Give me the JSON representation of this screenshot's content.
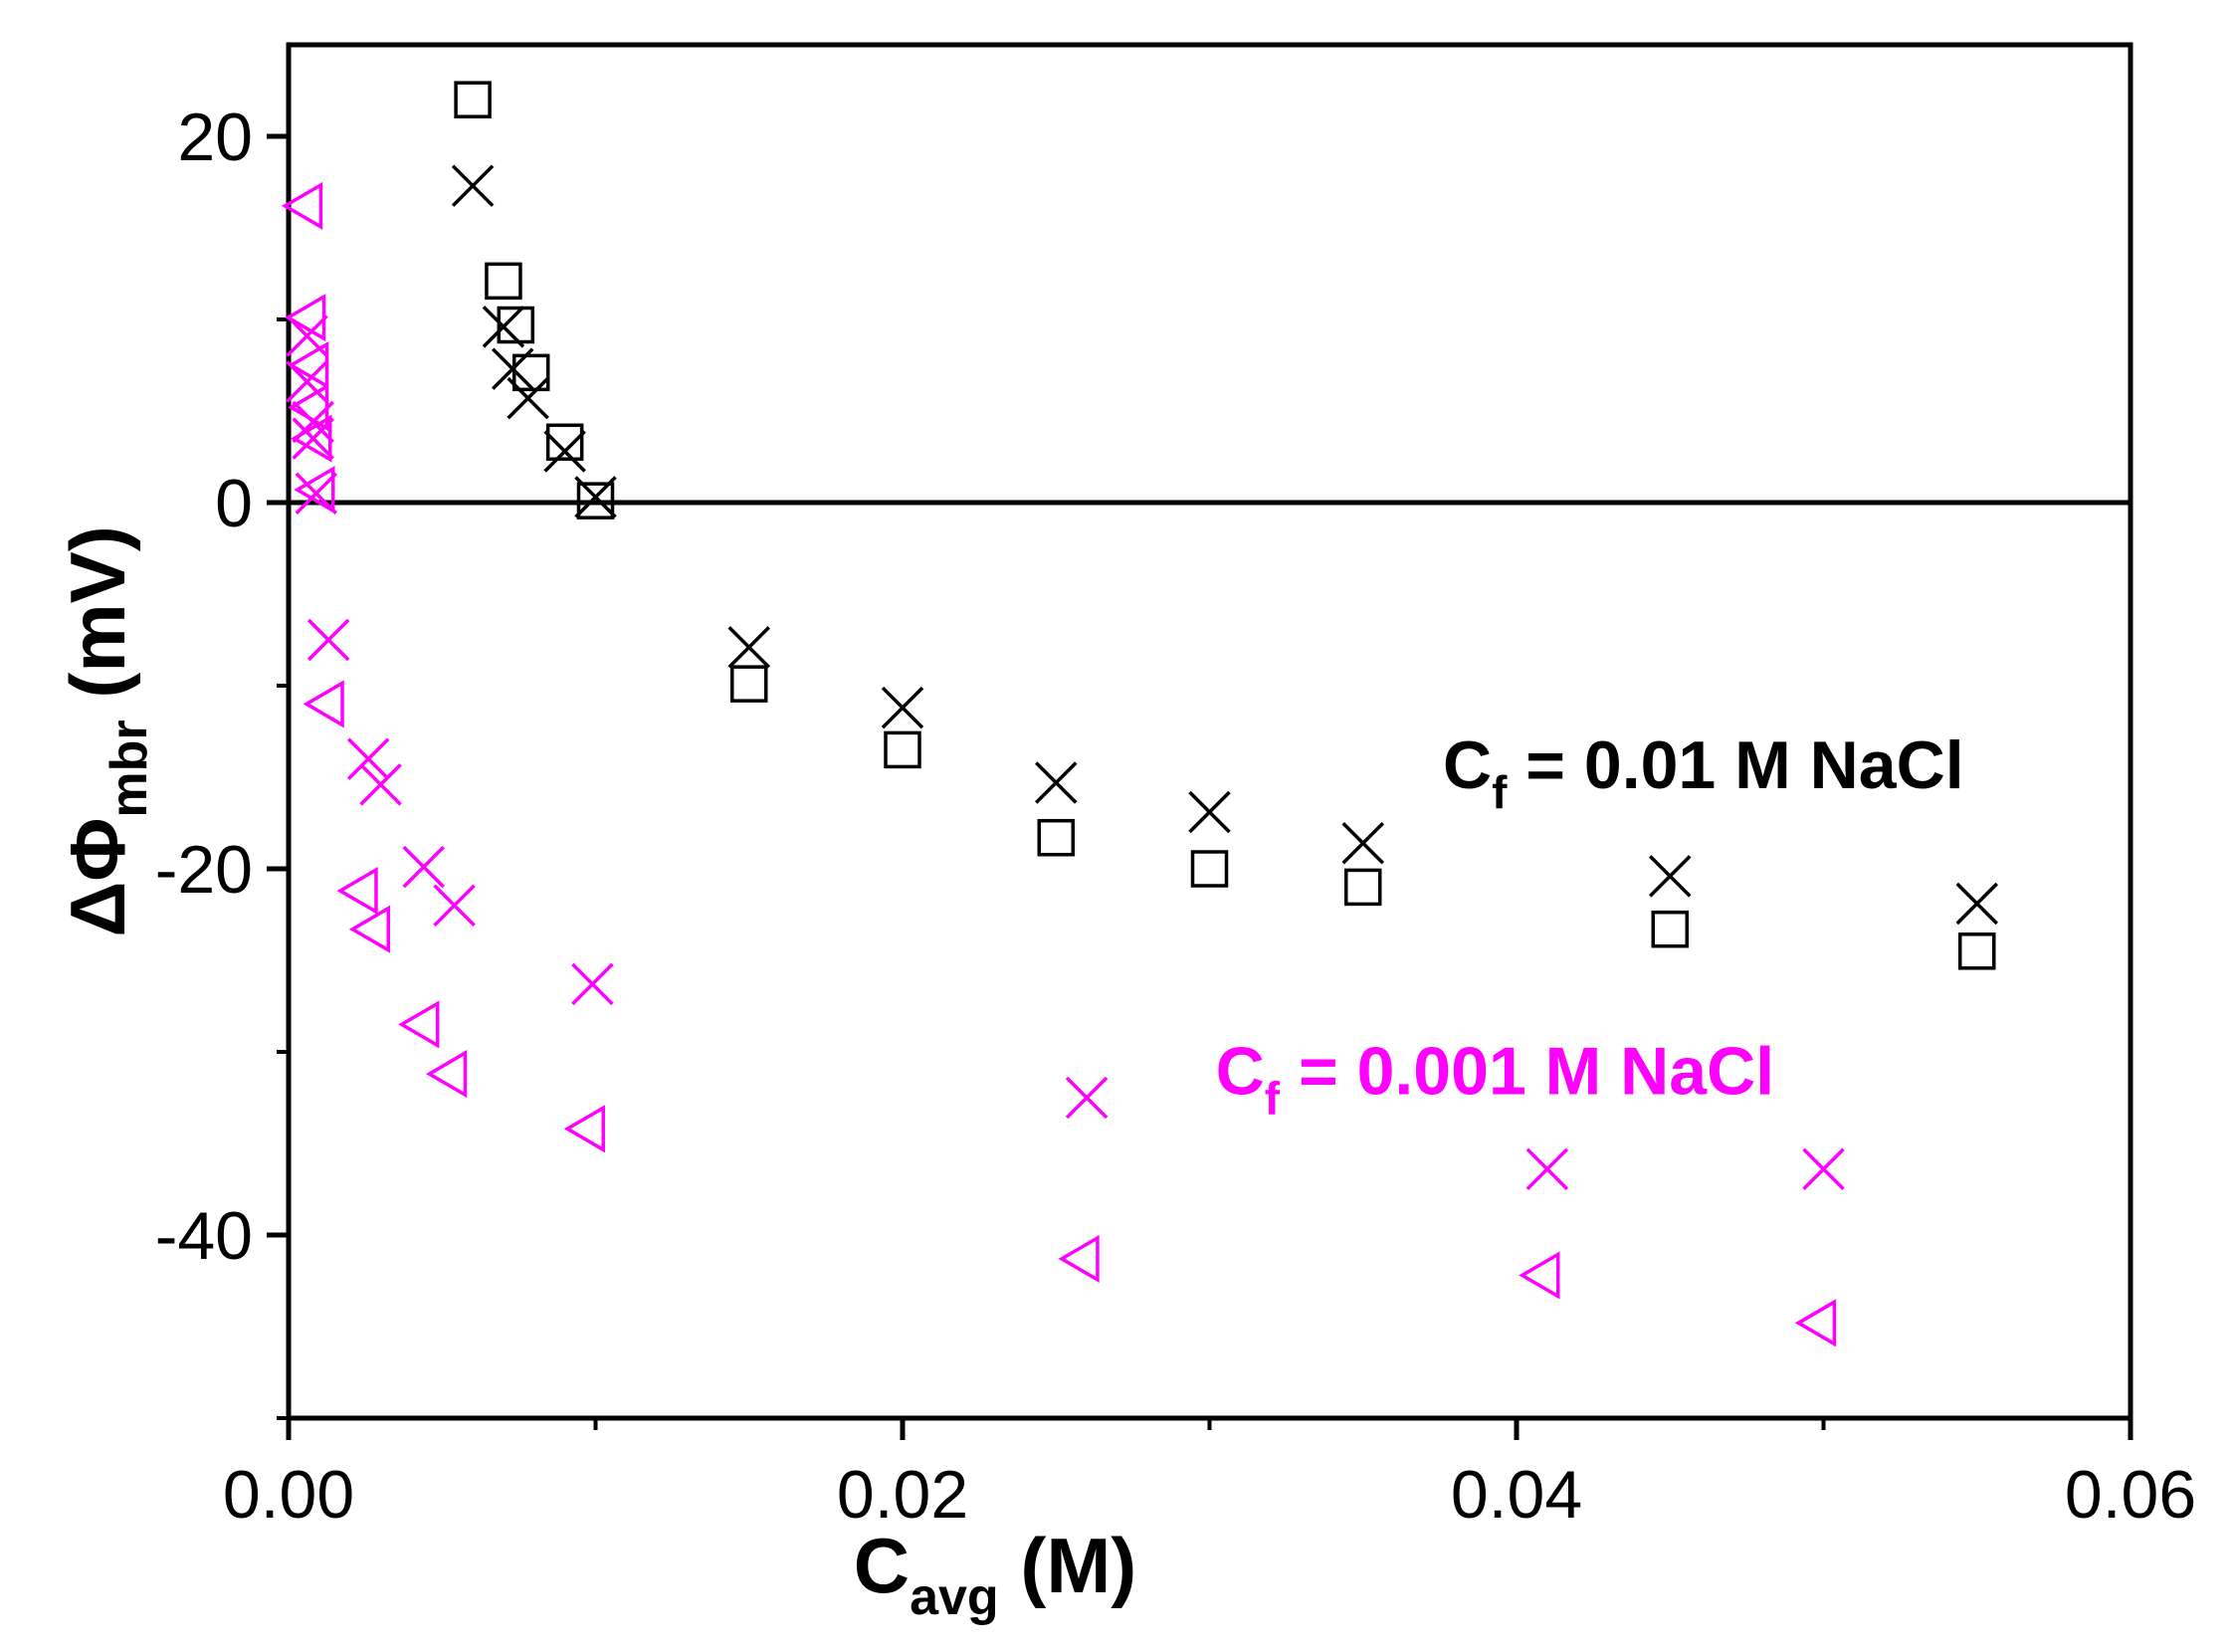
{
  "chart_data": {
    "type": "scatter",
    "title": "",
    "xlabel": {
      "main": "C",
      "sub": "avg",
      "unit": " (M)"
    },
    "ylabel": {
      "main": "ΔΦ",
      "sub": "mbr",
      "unit": " (mV)"
    },
    "xlim": [
      0,
      0.06
    ],
    "ylim": [
      -50,
      25
    ],
    "xticks": [
      0,
      0.02,
      0.04,
      0.06
    ],
    "xtick_labels": [
      "0.00",
      "0.02",
      "0.04",
      "0.06"
    ],
    "yticks": [
      -40,
      -20,
      0,
      20
    ],
    "ytick_labels": [
      "-40",
      "-20",
      "0",
      "20"
    ],
    "reference_line_y": 0,
    "grid": false,
    "colors": {
      "black": "#000000",
      "magenta": "#ff00ff"
    },
    "annotations": [
      {
        "main": "C",
        "sub": "f",
        "rest": " = 0.01 M NaCl",
        "color": "#000000",
        "x": 0.0376,
        "y": -15.6
      },
      {
        "main": "C",
        "sub": "f",
        "rest": " = 0.001 M NaCl",
        "color": "#ff00ff",
        "x": 0.0302,
        "y": -32.3
      }
    ],
    "series": [
      {
        "name": "0.01 M NaCl (squares)",
        "marker": "square",
        "color": "#000000",
        "x": [
          0.006,
          0.007,
          0.0074,
          0.0079,
          0.009,
          0.01,
          0.015,
          0.02,
          0.025,
          0.03,
          0.035,
          0.045,
          0.055
        ],
        "y": [
          22.0,
          12.1,
          9.7,
          7.1,
          3.3,
          0.1,
          -9.9,
          -13.5,
          -18.3,
          -20.0,
          -21.0,
          -23.3,
          -24.5
        ]
      },
      {
        "name": "0.01 M NaCl (crosses)",
        "marker": "x",
        "color": "#000000",
        "x": [
          0.006,
          0.007,
          0.0073,
          0.0078,
          0.009,
          0.01,
          0.015,
          0.02,
          0.025,
          0.03,
          0.035,
          0.045,
          0.055
        ],
        "y": [
          17.3,
          9.6,
          7.3,
          5.7,
          2.8,
          0.3,
          -7.9,
          -11.2,
          -15.3,
          -16.9,
          -18.6,
          -20.4,
          -21.9
        ]
      },
      {
        "name": "0.001 M NaCl (triangles)",
        "marker": "triangle-left",
        "color": "#ff00ff",
        "x": [
          0.0005,
          0.0006,
          0.0007,
          0.0007,
          0.0008,
          0.0009,
          0.0012,
          0.0023,
          0.0027,
          0.0043,
          0.0052,
          0.0097,
          0.0258,
          0.0408,
          0.0498
        ],
        "y": [
          16.2,
          10.1,
          7.5,
          5.2,
          3.5,
          0.7,
          -11.0,
          -21.2,
          -23.3,
          -28.5,
          -31.2,
          -34.2,
          -41.3,
          -42.2,
          -44.8
        ]
      },
      {
        "name": "0.001 M NaCl (crosses)",
        "marker": "x",
        "color": "#ff00ff",
        "x": [
          0.0006,
          0.0006,
          0.0008,
          0.0008,
          0.0009,
          0.0013,
          0.0026,
          0.003,
          0.0044,
          0.0054,
          0.0099,
          0.026,
          0.041,
          0.05
        ],
        "y": [
          9.1,
          6.6,
          4.4,
          3.5,
          0.5,
          -7.5,
          -14.0,
          -15.4,
          -19.9,
          -22.0,
          -26.3,
          -32.5,
          -36.4,
          -36.4
        ]
      }
    ]
  }
}
